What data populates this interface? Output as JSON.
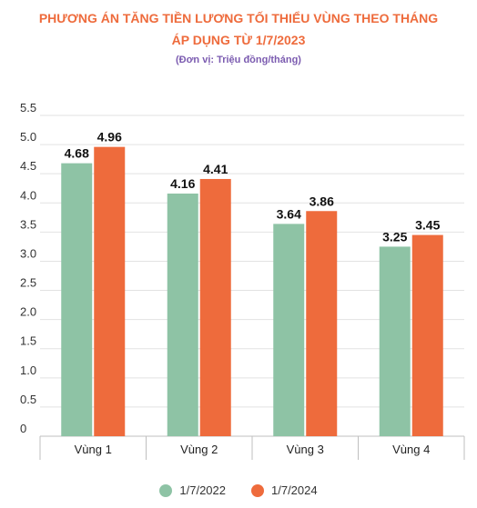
{
  "chart_data": {
    "type": "bar",
    "title_line1": "PHƯƠNG ÁN TĂNG TIỀN LƯƠNG TỐI THIỂU VÙNG THEO THÁNG",
    "title_line2": "ÁP DỤNG TỪ 1/7/2023",
    "subtitle": "(Đơn vị: Triệu đồng/tháng)",
    "categories": [
      "Vùng 1",
      "Vùng 2",
      "Vùng 3",
      "Vùng 4"
    ],
    "series": [
      {
        "name": "1/7/2022",
        "color": "#8ec3a5",
        "values": [
          4.68,
          4.16,
          3.64,
          3.25
        ]
      },
      {
        "name": "1/7/2024",
        "color": "#ee6b3c",
        "values": [
          4.96,
          4.41,
          3.86,
          3.45
        ]
      }
    ],
    "y_ticks": [
      "0",
      "0.5",
      "1.0",
      "1.5",
      "2.0",
      "2.5",
      "3.0",
      "3.5",
      "4.0",
      "4.5",
      "5.0",
      "5.5"
    ],
    "ylim": [
      0,
      5.5
    ],
    "grid": true,
    "legend_position": "bottom"
  }
}
